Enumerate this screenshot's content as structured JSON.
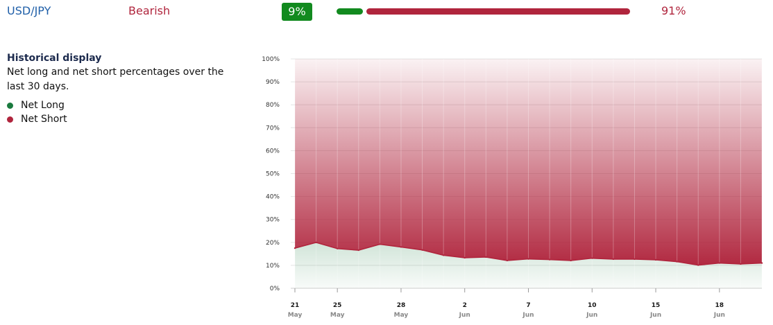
{
  "header": {
    "pair": "USD/JPY",
    "sentiment": "Bearish",
    "long_pct_label": "9%",
    "short_pct_label": "91%",
    "long_pct": 9,
    "short_pct": 91,
    "long_color": "#128a1f",
    "short_color": "#b0253d"
  },
  "info": {
    "title": "Historical display",
    "description": "Net long and net short percentages over the last 30 days.",
    "legend": [
      {
        "label": "Net Long",
        "color": "#1a7a3e"
      },
      {
        "label": "Net Short",
        "color": "#b0253d"
      }
    ]
  },
  "chart_data": {
    "type": "area",
    "title": "",
    "xlabel": "",
    "ylabel": "",
    "ylim": [
      0,
      100
    ],
    "y_ticks": [
      "0%",
      "10%",
      "20%",
      "30%",
      "40%",
      "50%",
      "60%",
      "70%",
      "80%",
      "90%",
      "100%"
    ],
    "x_ticks": [
      {
        "day": "21",
        "month": "May",
        "index": 0
      },
      {
        "day": "25",
        "month": "May",
        "index": 2
      },
      {
        "day": "28",
        "month": "May",
        "index": 5
      },
      {
        "day": "2",
        "month": "Jun",
        "index": 8
      },
      {
        "day": "7",
        "month": "Jun",
        "index": 11
      },
      {
        "day": "10",
        "month": "Jun",
        "index": 14
      },
      {
        "day": "15",
        "month": "Jun",
        "index": 17
      },
      {
        "day": "18",
        "month": "Jun",
        "index": 20
      }
    ],
    "grid": true,
    "series": [
      {
        "name": "Net Long",
        "color": "#1a7a3e",
        "values": [
          17.5,
          20,
          17.3,
          16.6,
          19.2,
          18,
          16.7,
          14.4,
          13.3,
          13.6,
          12.1,
          12.8,
          12.5,
          12.1,
          13.1,
          12.7,
          12.7,
          12.4,
          11.6,
          10.1,
          11,
          10.6,
          11
        ]
      },
      {
        "name": "Net Short",
        "color": "#b0253d",
        "values": [
          82.5,
          80,
          82.7,
          83.4,
          80.8,
          82,
          83.3,
          85.6,
          86.7,
          86.4,
          87.9,
          87.2,
          87.5,
          87.9,
          86.9,
          87.3,
          87.3,
          87.6,
          88.4,
          89.9,
          89,
          89.4,
          89
        ]
      }
    ]
  }
}
